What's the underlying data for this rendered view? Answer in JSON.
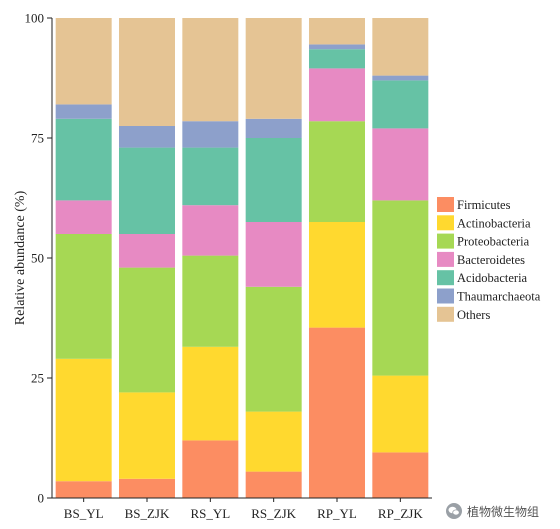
{
  "chart_data": {
    "type": "bar",
    "stacked": true,
    "title": "",
    "xlabel": "",
    "ylabel": "Relative abundance (%)",
    "ylim": [
      0,
      100
    ],
    "yticks": [
      "0",
      "25",
      "50",
      "75",
      "100"
    ],
    "categories": [
      "BS_YL",
      "BS_ZJK",
      "RS_YL",
      "RS_ZJK",
      "RP_YL",
      "RP_ZJK"
    ],
    "grid": false,
    "legend_position": "right",
    "series": [
      {
        "name": "Firmicutes",
        "color": "#FC8D62",
        "values": [
          3.5,
          4,
          12,
          5.5,
          35.5,
          9.5
        ]
      },
      {
        "name": "Actinobacteria",
        "color": "#FFD92F",
        "values": [
          25.5,
          18,
          19.5,
          12.5,
          22,
          16
        ]
      },
      {
        "name": "Proteobacteria",
        "color": "#A6D854",
        "values": [
          26,
          26,
          19,
          26,
          21,
          36.5
        ]
      },
      {
        "name": "Bacteroidetes",
        "color": "#E78AC3",
        "values": [
          7,
          7,
          10.5,
          13.5,
          11,
          15
        ]
      },
      {
        "name": "Acidobacteria",
        "color": "#66C2A5",
        "values": [
          17,
          18,
          12,
          17.5,
          4,
          10
        ]
      },
      {
        "name": "Thaumarchaeota",
        "color": "#8DA0CB",
        "values": [
          3,
          4.5,
          5.5,
          4,
          1,
          1
        ]
      },
      {
        "name": "Others",
        "color": "#E5C494",
        "values": [
          18,
          22.5,
          21.5,
          21,
          5.5,
          12
        ]
      }
    ]
  },
  "watermark": {
    "text": "植物微生物组",
    "icon": "wechat-icon"
  }
}
